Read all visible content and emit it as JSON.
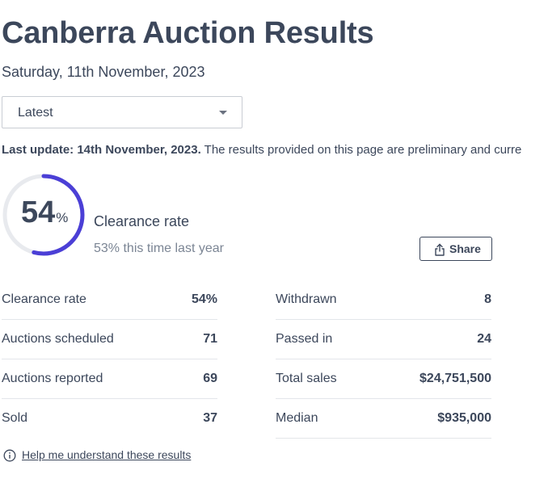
{
  "page": {
    "title": "Canberra Auction Results",
    "date": "Saturday, 11th November, 2023"
  },
  "filter": {
    "selected": "Latest"
  },
  "notice": {
    "bold": "Last update: 14th November, 2023.",
    "text": " The results provided on this page are preliminary and curre"
  },
  "clearance": {
    "value": "54",
    "unit": "%",
    "fraction": 0.54,
    "label": "Clearance rate",
    "last_year": "53% this time last year",
    "accent_color": "#4b3fd6",
    "track_color": "#e8eaee"
  },
  "share": {
    "label": "Share",
    "icon": "share-icon"
  },
  "stats_left": [
    {
      "label": "Clearance rate",
      "value": "54%"
    },
    {
      "label": "Auctions scheduled",
      "value": "71"
    },
    {
      "label": "Auctions reported",
      "value": "69"
    },
    {
      "label": "Sold",
      "value": "37"
    }
  ],
  "stats_right": [
    {
      "label": "Withdrawn",
      "value": "8"
    },
    {
      "label": "Passed in",
      "value": "24"
    },
    {
      "label": "Total sales",
      "value": "$24,751,500"
    },
    {
      "label": "Median",
      "value": "$935,000"
    }
  ],
  "help": {
    "icon": "info-icon",
    "link": "Help me understand these results"
  }
}
